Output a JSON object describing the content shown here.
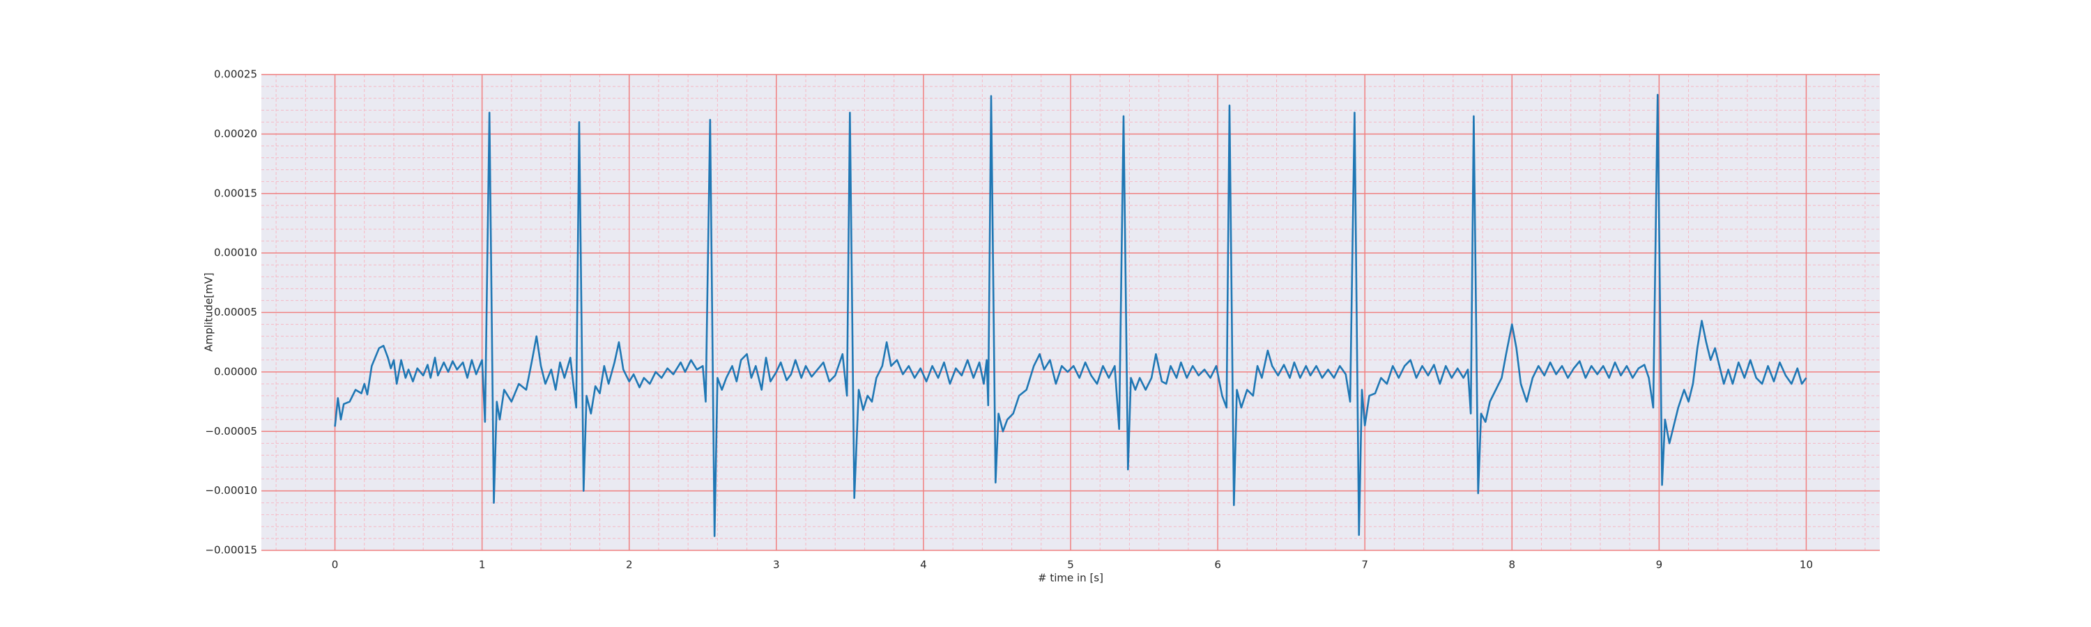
{
  "chart_data": {
    "type": "line",
    "xlabel": "# time in [s]",
    "ylabel": "Amplitude[mV]",
    "color": "#1f77b4",
    "background": "#eaeaf2",
    "grid": true,
    "grid_color": "#f08080",
    "minor_grid_color": "#f5b8c4",
    "xlim": [
      -0.5,
      10.5
    ],
    "ylim": [
      -0.00015,
      0.00025
    ],
    "xticks": [
      0,
      1,
      2,
      3,
      4,
      5,
      6,
      7,
      8,
      9,
      10
    ],
    "yticks": [
      {
        "value": 0.00025,
        "label": "0.00025"
      },
      {
        "value": 0.0002,
        "label": "0.00020"
      },
      {
        "value": 0.00015,
        "label": "0.00015"
      },
      {
        "value": 0.0001,
        "label": "0.00010"
      },
      {
        "value": 5e-05,
        "label": "0.00005"
      },
      {
        "value": 0,
        "label": "0.00000"
      },
      {
        "value": -5e-05,
        "label": "−0.00005"
      },
      {
        "value": -0.0001,
        "label": "−0.00010"
      },
      {
        "value": -0.00015,
        "label": "−0.00015"
      }
    ],
    "xminorticks": [
      -0.4,
      -0.2,
      0.2,
      0.4,
      0.6,
      0.8,
      1.2,
      1.4,
      1.6,
      1.8,
      2.2,
      2.4,
      2.6,
      2.8,
      3.2,
      3.4,
      3.6,
      3.8,
      4.2,
      4.4,
      4.6,
      4.8,
      5.2,
      5.4,
      5.6,
      5.8,
      6.2,
      6.4,
      6.6,
      6.8,
      7.2,
      7.4,
      7.6,
      7.8,
      8.2,
      8.4,
      8.6,
      8.8,
      9.2,
      9.4,
      9.6,
      9.8,
      10.2,
      10.4
    ],
    "yminorticks": [
      0.00024,
      0.00023,
      0.00022,
      0.00021,
      0.00019,
      0.00018,
      0.00017,
      0.00016,
      0.00014,
      0.00013,
      0.00012,
      0.00011,
      9e-05,
      8e-05,
      7e-05,
      6e-05,
      4e-05,
      3e-05,
      2e-05,
      1e-05,
      -1e-05,
      -2e-05,
      -3e-05,
      -4e-05,
      -6e-05,
      -7e-05,
      -8e-05,
      -9e-05,
      -0.00011,
      -0.00012,
      -0.00013,
      -0.00014
    ],
    "x": [
      0,
      0.02,
      0.04,
      0.06,
      0.1,
      0.14,
      0.18,
      0.2,
      0.22,
      0.25,
      0.3,
      0.33,
      0.36,
      0.38,
      0.4,
      0.42,
      0.45,
      0.48,
      0.5,
      0.53,
      0.56,
      0.6,
      0.63,
      0.65,
      0.68,
      0.7,
      0.74,
      0.77,
      0.8,
      0.83,
      0.87,
      0.9,
      0.93,
      0.96,
      1.0,
      1.02,
      1.05,
      1.08,
      1.1,
      1.12,
      1.15,
      1.2,
      1.25,
      1.3,
      1.34,
      1.37,
      1.4,
      1.43,
      1.47,
      1.5,
      1.53,
      1.56,
      1.6,
      1.62,
      1.64,
      1.66,
      1.69,
      1.71,
      1.74,
      1.77,
      1.8,
      1.83,
      1.86,
      1.9,
      1.93,
      1.96,
      2.0,
      2.03,
      2.07,
      2.1,
      2.14,
      2.18,
      2.22,
      2.26,
      2.3,
      2.35,
      2.38,
      2.42,
      2.46,
      2.5,
      2.52,
      2.55,
      2.58,
      2.6,
      2.63,
      2.66,
      2.7,
      2.73,
      2.76,
      2.8,
      2.83,
      2.86,
      2.9,
      2.93,
      2.96,
      3.0,
      3.03,
      3.07,
      3.1,
      3.13,
      3.17,
      3.2,
      3.24,
      3.28,
      3.32,
      3.36,
      3.4,
      3.45,
      3.48,
      3.5,
      3.53,
      3.56,
      3.59,
      3.62,
      3.65,
      3.68,
      3.72,
      3.75,
      3.78,
      3.82,
      3.86,
      3.9,
      3.94,
      3.98,
      4.02,
      4.06,
      4.1,
      4.14,
      4.18,
      4.22,
      4.26,
      4.3,
      4.34,
      4.38,
      4.41,
      4.43,
      4.44,
      4.46,
      4.49,
      4.51,
      4.54,
      4.57,
      4.61,
      4.65,
      4.7,
      4.75,
      4.79,
      4.82,
      4.86,
      4.9,
      4.94,
      4.98,
      5.02,
      5.06,
      5.1,
      5.14,
      5.18,
      5.22,
      5.26,
      5.3,
      5.33,
      5.36,
      5.39,
      5.41,
      5.44,
      5.47,
      5.51,
      5.55,
      5.58,
      5.62,
      5.65,
      5.68,
      5.72,
      5.75,
      5.79,
      5.83,
      5.87,
      5.91,
      5.95,
      5.99,
      6.03,
      6.06,
      6.08,
      6.11,
      6.13,
      6.16,
      6.2,
      6.24,
      6.27,
      6.3,
      6.34,
      6.37,
      6.41,
      6.45,
      6.49,
      6.52,
      6.56,
      6.6,
      6.63,
      6.67,
      6.71,
      6.75,
      6.79,
      6.83,
      6.87,
      6.9,
      6.93,
      6.96,
      6.98,
      7.0,
      7.03,
      7.07,
      7.11,
      7.15,
      7.19,
      7.23,
      7.27,
      7.31,
      7.35,
      7.39,
      7.43,
      7.47,
      7.51,
      7.55,
      7.59,
      7.63,
      7.67,
      7.7,
      7.72,
      7.74,
      7.77,
      7.79,
      7.82,
      7.85,
      7.89,
      7.93,
      7.96,
      8.0,
      8.03,
      8.06,
      8.1,
      8.14,
      8.18,
      8.22,
      8.26,
      8.3,
      8.34,
      8.38,
      8.42,
      8.46,
      8.5,
      8.54,
      8.58,
      8.62,
      8.66,
      8.7,
      8.74,
      8.78,
      8.82,
      8.86,
      8.9,
      8.93,
      8.96,
      8.99,
      9.02,
      9.04,
      9.07,
      9.1,
      9.13,
      9.17,
      9.2,
      9.23,
      9.26,
      9.29,
      9.32,
      9.35,
      9.38,
      9.41,
      9.44,
      9.47,
      9.5,
      9.54,
      9.58,
      9.62,
      9.66,
      9.7,
      9.74,
      9.78,
      9.82,
      9.86,
      9.9,
      9.94,
      9.97,
      10.0
    ],
    "values": [
      -4.6e-05,
      -2.2e-05,
      -4e-05,
      -2.7e-05,
      -2.5e-05,
      -1.5e-05,
      -1.8e-05,
      -1e-05,
      -1.9e-05,
      5e-06,
      2e-05,
      2.2e-05,
      1.2e-05,
      3e-06,
      1e-05,
      -1e-05,
      1e-05,
      -5e-06,
      2e-06,
      -8e-06,
      3e-06,
      -3e-06,
      6e-06,
      -5e-06,
      1.2e-05,
      -3e-06,
      8e-06,
      0,
      9e-06,
      2e-06,
      8e-06,
      -5e-06,
      1e-05,
      -2e-06,
      1e-05,
      -4.2e-05,
      0.000218,
      -0.00011,
      -2.5e-05,
      -4e-05,
      -1.5e-05,
      -2.5e-05,
      -1e-05,
      -1.5e-05,
      1e-05,
      3e-05,
      5e-06,
      -1e-05,
      2e-06,
      -1.5e-05,
      8e-06,
      -5e-06,
      1.2e-05,
      -1e-05,
      -3e-05,
      0.00021,
      -0.0001,
      -2e-05,
      -3.5e-05,
      -1.2e-05,
      -1.8e-05,
      5e-06,
      -1e-05,
      8e-06,
      2.5e-05,
      2e-06,
      -8e-06,
      -2e-06,
      -1.3e-05,
      -5e-06,
      -1e-05,
      0,
      -5e-06,
      3e-06,
      -2e-06,
      8e-06,
      0,
      1e-05,
      2e-06,
      5e-06,
      -2.5e-05,
      0.000212,
      -0.000138,
      -5e-06,
      -1.5e-05,
      -5e-06,
      5e-06,
      -8e-06,
      1e-05,
      1.5e-05,
      -5e-06,
      5e-06,
      -1.5e-05,
      1.2e-05,
      -8e-06,
      0,
      8e-06,
      -7e-06,
      -2e-06,
      1e-05,
      -5e-06,
      5e-06,
      -4e-06,
      2e-06,
      8e-06,
      -8e-06,
      -3e-06,
      1.5e-05,
      -2e-05,
      0.000218,
      -0.000106,
      -1.5e-05,
      -3.2e-05,
      -2e-05,
      -2.5e-05,
      -5e-06,
      5e-06,
      2.5e-05,
      5e-06,
      1e-05,
      -2e-06,
      5e-06,
      -5e-06,
      3e-06,
      -8e-06,
      5e-06,
      -5e-06,
      8e-06,
      -1e-05,
      3e-06,
      -3e-06,
      1e-05,
      -5e-06,
      8e-06,
      -1e-05,
      1e-05,
      -2.8e-05,
      0.000232,
      -9.3e-05,
      -3.5e-05,
      -5e-05,
      -4e-05,
      -3.5e-05,
      -2e-05,
      -1.5e-05,
      5e-06,
      1.5e-05,
      2e-06,
      1e-05,
      -1e-05,
      5e-06,
      0,
      5e-06,
      -5e-06,
      8e-06,
      -3e-06,
      -1e-05,
      5e-06,
      -5e-06,
      5e-06,
      -4.8e-05,
      0.000215,
      -8.2e-05,
      -5e-06,
      -1.5e-05,
      -5e-06,
      -1.5e-05,
      -5e-06,
      1.5e-05,
      -8e-06,
      -1e-05,
      5e-06,
      -5e-06,
      8e-06,
      -5e-06,
      5e-06,
      -3e-06,
      2e-06,
      -5e-06,
      5e-06,
      -2e-05,
      -3e-05,
      0.000224,
      -0.000112,
      -1.5e-05,
      -3e-05,
      -1.5e-05,
      -2e-05,
      5e-06,
      -5e-06,
      1.8e-05,
      5e-06,
      -3e-06,
      6e-06,
      -5e-06,
      8e-06,
      -5e-06,
      5e-06,
      -3e-06,
      5e-06,
      -5e-06,
      2e-06,
      -5e-06,
      5e-06,
      -2e-06,
      -2.5e-05,
      0.000218,
      -0.000137,
      -1.5e-05,
      -4.5e-05,
      -2e-05,
      -1.8e-05,
      -5e-06,
      -1e-05,
      5e-06,
      -5e-06,
      5e-06,
      1e-05,
      -5e-06,
      5e-06,
      -3e-06,
      6e-06,
      -1e-05,
      5e-06,
      -5e-06,
      3e-06,
      -5e-06,
      2e-06,
      -3.5e-05,
      0.000215,
      -0.000102,
      -3.5e-05,
      -4.2e-05,
      -2.5e-05,
      -1.5e-05,
      -5e-06,
      1.5e-05,
      4e-05,
      2e-05,
      -1e-05,
      -2.5e-05,
      -5e-06,
      5e-06,
      -3e-06,
      8e-06,
      -2e-06,
      5e-06,
      -5e-06,
      3e-06,
      9e-06,
      -5e-06,
      5e-06,
      -2e-06,
      5e-06,
      -5e-06,
      8e-06,
      -3e-06,
      5e-06,
      -5e-06,
      3e-06,
      6e-06,
      -5e-06,
      -3e-05,
      0.000233,
      -9.5e-05,
      -4e-05,
      -6e-05,
      -4.5e-05,
      -3e-05,
      -1.5e-05,
      -2.5e-05,
      -1e-05,
      2e-05,
      4.3e-05,
      2.5e-05,
      1e-05,
      2e-05,
      5e-06,
      -1e-05,
      2e-06,
      -1e-05,
      8e-06,
      -5e-06,
      1e-05,
      -5e-06,
      -1e-05,
      5e-06,
      -8e-06,
      8e-06,
      -3e-06,
      -1e-05,
      3e-06,
      -1e-05,
      -5e-06
    ]
  }
}
